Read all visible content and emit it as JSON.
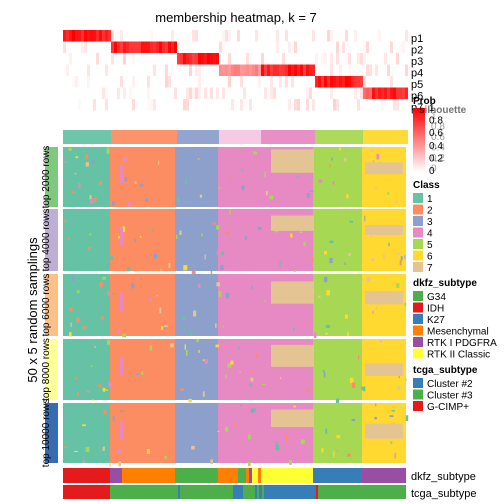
{
  "chart_data": {
    "type": "heatmap",
    "title": "membership heatmap, k = 7",
    "ylabel": "50 x 5 random samplings",
    "prob_rows": [
      "p1",
      "p2",
      "p3",
      "p4",
      "p5",
      "p6",
      "p7"
    ],
    "row_groups": [
      {
        "label": "top 2000 rows",
        "color": "#7fc97f"
      },
      {
        "label": "top 4000 rows",
        "color": "#beaed4"
      },
      {
        "label": "top 6000 rows",
        "color": "#fdc086"
      },
      {
        "label": "top 8000 rows",
        "color": "#ffff99"
      },
      {
        "label": "top 10000 rows",
        "color": "#386cb0"
      }
    ],
    "class_order": [
      "1",
      "2",
      "3",
      "4",
      "5",
      "6",
      "7"
    ],
    "class_widths": [
      47,
      65,
      43,
      95,
      49,
      44,
      0
    ],
    "bottom_annotations": [
      "dkfz_subtype",
      "tcga_subtype"
    ],
    "dkfz_segments": [
      {
        "w": 47,
        "c": "#e41a1c"
      },
      {
        "w": 12,
        "c": "#984ea3"
      },
      {
        "w": 53,
        "c": "#ff7f00"
      },
      {
        "w": 43,
        "c": "#4daf4a"
      },
      {
        "w": 20,
        "c": "#ff7f00"
      },
      {
        "w": 8,
        "c": "#4daf4a"
      },
      {
        "w": 3,
        "c": "#ff7f00"
      },
      {
        "w": 3,
        "c": "#984ea3"
      },
      {
        "w": 6,
        "c": "#ffff33"
      },
      {
        "w": 3,
        "c": "#ff7f00"
      },
      {
        "w": 52,
        "c": "#ffff33"
      },
      {
        "w": 49,
        "c": "#377eb8"
      },
      {
        "w": 44,
        "c": "#984ea3"
      }
    ],
    "tcga_segments": [
      {
        "w": 47,
        "c": "#e41a1c"
      },
      {
        "w": 68,
        "c": "#4daf4a"
      },
      {
        "w": 2,
        "c": "#377eb8"
      },
      {
        "w": 38,
        "c": "#4daf4a"
      },
      {
        "w": 15,
        "c": "#4daf4a"
      },
      {
        "w": 10,
        "c": "#377eb8"
      },
      {
        "w": 12,
        "c": "#4daf4a"
      },
      {
        "w": 2,
        "c": "#377eb8"
      },
      {
        "w": 2,
        "c": "#4daf4a"
      },
      {
        "w": 3,
        "c": "#377eb8"
      },
      {
        "w": 2,
        "c": "#4daf4a"
      },
      {
        "w": 2,
        "c": "#377eb8"
      },
      {
        "w": 50,
        "c": "#377eb8"
      },
      {
        "w": 2,
        "c": "#e41a1c"
      },
      {
        "w": 88,
        "c": "#4daf4a"
      }
    ],
    "legends": {
      "prob": {
        "title": "Prob",
        "ticks": [
          "1",
          "0.8",
          "0.6",
          "0.4",
          "0.2",
          "0"
        ]
      },
      "silhouette": {
        "title": "silhouette",
        "ticks": [
          "1",
          "0.8",
          "0.6",
          "0.4",
          "0.2",
          "0"
        ]
      },
      "class": {
        "title": "Class",
        "items": [
          {
            "label": "1",
            "color": "#66c2a5"
          },
          {
            "label": "2",
            "color": "#fc8d62"
          },
          {
            "label": "3",
            "color": "#8da0cb"
          },
          {
            "label": "4",
            "color": "#e78ac3"
          },
          {
            "label": "5",
            "color": "#a6d854"
          },
          {
            "label": "6",
            "color": "#ffd92f"
          },
          {
            "label": "7",
            "color": "#e5c494"
          }
        ]
      },
      "dkfz": {
        "title": "dkfz_subtype",
        "items": [
          {
            "label": "G34",
            "color": "#4daf4a"
          },
          {
            "label": "IDH",
            "color": "#e41a1c"
          },
          {
            "label": "K27",
            "color": "#377eb8"
          },
          {
            "label": "Mesenchymal",
            "color": "#ff7f00"
          },
          {
            "label": "RTK I PDGFRA",
            "color": "#984ea3"
          },
          {
            "label": "RTK II Classic",
            "color": "#ffff33"
          }
        ]
      },
      "tcga": {
        "title": "tcga_subtype",
        "items": [
          {
            "label": "Cluster #2",
            "color": "#377eb8"
          },
          {
            "label": "Cluster #3",
            "color": "#4daf4a"
          },
          {
            "label": "G-CIMP+",
            "color": "#e41a1c"
          }
        ]
      }
    }
  }
}
